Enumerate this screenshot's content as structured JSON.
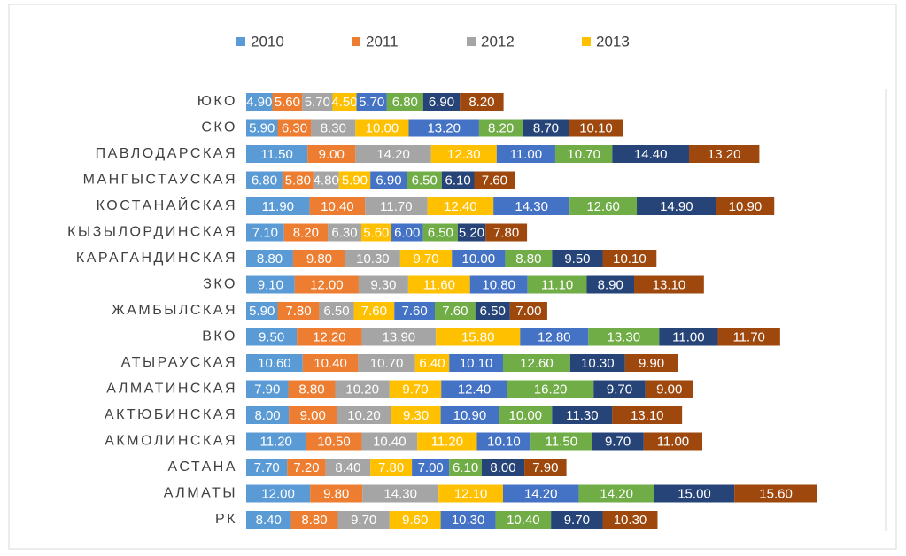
{
  "chart_data": {
    "type": "stacked_bar_horizontal",
    "categories": [
      "ЮКО",
      "СКО",
      "ПАВЛОДАРСКАЯ",
      "МАНГЫСТАУСКАЯ",
      "КОСТАНАЙСКАЯ",
      "КЫЗЫЛОРДИНСКАЯ",
      "КАРАГАНДИНСКАЯ",
      "ЗКО",
      "ЖАМБЫЛСКАЯ",
      "ВКО",
      "АТЫРАУСКАЯ",
      "АЛМАТИНСКАЯ",
      "АКТЮБИНСКАЯ",
      "АКМОЛИНСКАЯ",
      "АСТАНА",
      "АЛМАТЫ",
      "РК"
    ],
    "xlim": [
      0,
      120
    ],
    "series": [
      {
        "name": "2010",
        "color": "#5b9bd5",
        "values": [
          4.9,
          5.9,
          11.5,
          6.8,
          11.9,
          7.1,
          8.8,
          9.1,
          5.9,
          9.5,
          10.6,
          7.9,
          8.0,
          11.2,
          7.7,
          12.0,
          8.4
        ],
        "value_labels": [
          "4.90",
          "5.90",
          "11.50",
          "6.80",
          "11.90",
          "7.10",
          "8.80",
          "9.10",
          "5.90",
          "9.50",
          "10.60",
          "7.90",
          "8.00",
          "11.20",
          "7.70",
          "12.00",
          "8.40"
        ]
      },
      {
        "name": "2011",
        "color": "#ed7d31",
        "values": [
          5.6,
          6.3,
          9.0,
          5.8,
          10.4,
          8.2,
          9.8,
          12.0,
          7.8,
          12.2,
          10.4,
          8.8,
          9.0,
          10.5,
          7.2,
          9.8,
          8.8
        ],
        "value_labels": [
          "5.60",
          "6.30",
          "9.00",
          "5.80",
          "10.40",
          "8.20",
          "9.80",
          "12.00",
          "7.80",
          "12.20",
          "10.40",
          "8.80",
          "9.00",
          "10.50",
          "7.20",
          "9.80",
          "8.80"
        ]
      },
      {
        "name": "2012",
        "color": "#a5a5a5",
        "values": [
          5.7,
          8.3,
          14.2,
          4.8,
          11.7,
          6.3,
          10.3,
          9.3,
          6.5,
          13.9,
          10.7,
          10.2,
          10.2,
          10.4,
          8.4,
          14.3,
          9.7
        ],
        "value_labels": [
          "5.70",
          "8.30",
          "14.20",
          "4.80",
          "11.70",
          "6.30",
          "10.30",
          "9.30",
          "6.50",
          "13.90",
          "10.70",
          "10.20",
          "10.20",
          "10.40",
          "8.40",
          "14.30",
          "9.70"
        ]
      },
      {
        "name": "2013",
        "color": "#ffc000",
        "values": [
          4.5,
          10.0,
          12.3,
          5.9,
          12.4,
          5.6,
          9.7,
          11.6,
          7.6,
          15.8,
          6.4,
          9.7,
          9.3,
          11.2,
          7.8,
          12.1,
          9.6
        ],
        "value_labels": [
          "4.50",
          "10.00",
          "12.30",
          "5.90",
          "12.40",
          "5.60",
          "9.70",
          "11.60",
          "7.60",
          "15.80",
          "6.40",
          "9.70",
          "9.30",
          "11.20",
          "7.80",
          "12.10",
          "9.60"
        ]
      },
      {
        "color": "#4472c4",
        "values": [
          5.7,
          13.2,
          11.0,
          6.9,
          14.3,
          6.0,
          10.0,
          10.8,
          7.6,
          12.8,
          10.1,
          12.4,
          10.9,
          10.1,
          7.0,
          14.2,
          10.3
        ],
        "value_labels": [
          "5.70",
          "13.20",
          "11.00",
          "6.90",
          "14.30",
          "6.00",
          "10.00",
          "10.80",
          "7.60",
          "12.80",
          "10.10",
          "12.40",
          "10.90",
          "10.10",
          "7.00",
          "14.20",
          "10.30"
        ]
      },
      {
        "color": "#70ad47",
        "values": [
          6.8,
          8.2,
          10.7,
          6.5,
          12.6,
          6.5,
          8.8,
          11.1,
          7.6,
          13.3,
          12.6,
          16.2,
          10.0,
          11.5,
          6.1,
          14.2,
          10.4
        ],
        "value_labels": [
          "6.80",
          "8.20",
          "10.70",
          "6.50",
          "12.60",
          "6.50",
          "8.80",
          "11.10",
          "7.60",
          "13.30",
          "12.60",
          "16.20",
          "10.00",
          "11.50",
          "6.10",
          "14.20",
          "10.40"
        ]
      },
      {
        "color": "#264478",
        "values": [
          6.9,
          8.7,
          14.4,
          6.1,
          14.9,
          5.2,
          9.5,
          8.9,
          6.5,
          11.0,
          10.3,
          9.7,
          11.3,
          9.7,
          8.0,
          15.0,
          9.7
        ],
        "value_labels": [
          "6.90",
          "8.70",
          "14.40",
          "6.10",
          "14.90",
          "5.20",
          "9.50",
          "8.90",
          "6.50",
          "11.00",
          "10.30",
          "9.70",
          "11.30",
          "9.70",
          "8.00",
          "15.00",
          "9.70"
        ]
      },
      {
        "color": "#9e480e",
        "values": [
          8.2,
          10.1,
          13.2,
          7.6,
          10.9,
          7.8,
          10.1,
          13.1,
          7.0,
          11.7,
          9.9,
          9.0,
          13.1,
          11.0,
          7.9,
          15.6,
          10.3
        ],
        "value_labels": [
          "8.20",
          "10.10",
          "13.20",
          "7.60",
          "10.90",
          "7.80",
          "10.10",
          "13.10",
          "7.00",
          "11.70",
          "9.90",
          "9.00",
          "13.10",
          "11.00",
          "7.90",
          "15.60",
          "10.30"
        ]
      }
    ]
  }
}
